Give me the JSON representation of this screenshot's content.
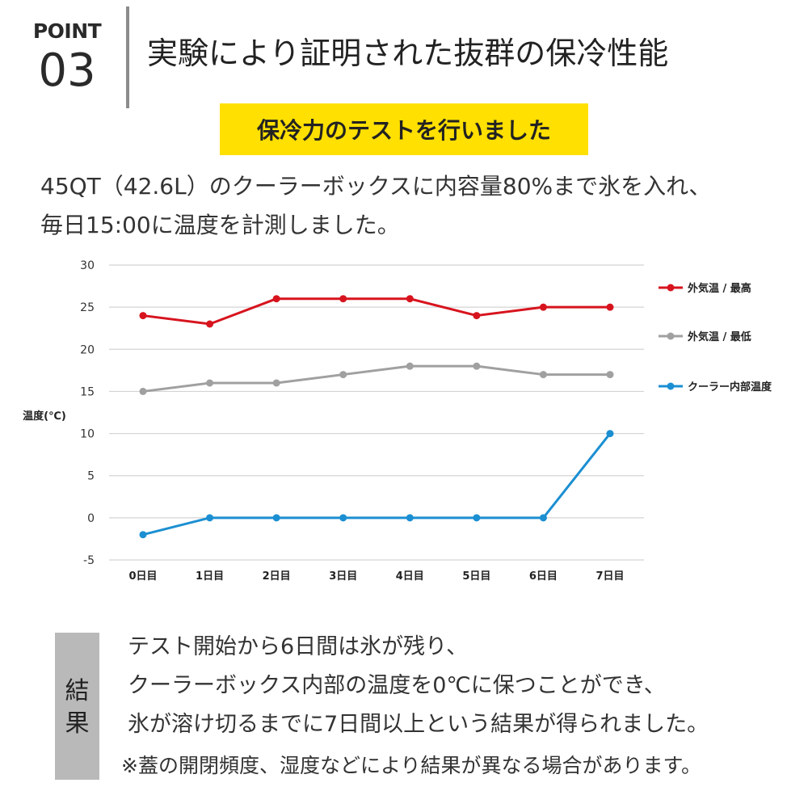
{
  "point": {
    "label": "POINT",
    "number": "03"
  },
  "heading": "実験により証明された抜群の保冷性能",
  "banner": "保冷力のテストを行いました",
  "description": [
    "45QT（42.6L）のクーラーボックスに内容量80%まで氷を入れ、",
    "毎日15:00に温度を計測しました。"
  ],
  "chart_data": {
    "type": "line",
    "categories": [
      "0日目",
      "1日目",
      "2日目",
      "3日目",
      "4日目",
      "5日目",
      "6日目",
      "7日目"
    ],
    "series": [
      {
        "name": "外気温 / 最高",
        "color": "#d7141e",
        "values": [
          24,
          23,
          26,
          26,
          26,
          24,
          25,
          25
        ]
      },
      {
        "name": "外気温 / 最低",
        "color": "#a0a0a0",
        "values": [
          15,
          16,
          16,
          17,
          18,
          18,
          17,
          17
        ]
      },
      {
        "name": "クーラー内部温度",
        "color": "#1b8fd2",
        "values": [
          -2,
          0,
          0,
          0,
          0,
          0,
          0,
          10
        ]
      }
    ],
    "ylabel": "温度(℃)",
    "ylim": [
      -5,
      30
    ],
    "yticks": [
      30,
      25,
      20,
      15,
      10,
      5,
      0,
      -5
    ],
    "grid": true,
    "legend": "right"
  },
  "result": {
    "label_chars": [
      "結",
      "果"
    ],
    "lines": [
      "テスト開始から6日間は氷が残り、",
      "クーラーボックス内部の温度を0℃に保つことができ、",
      "氷が溶け切るまでに7日間以上という結果が得られました。"
    ],
    "note": "※蓋の開閉頻度、湿度などにより結果が異なる場合があります。"
  }
}
